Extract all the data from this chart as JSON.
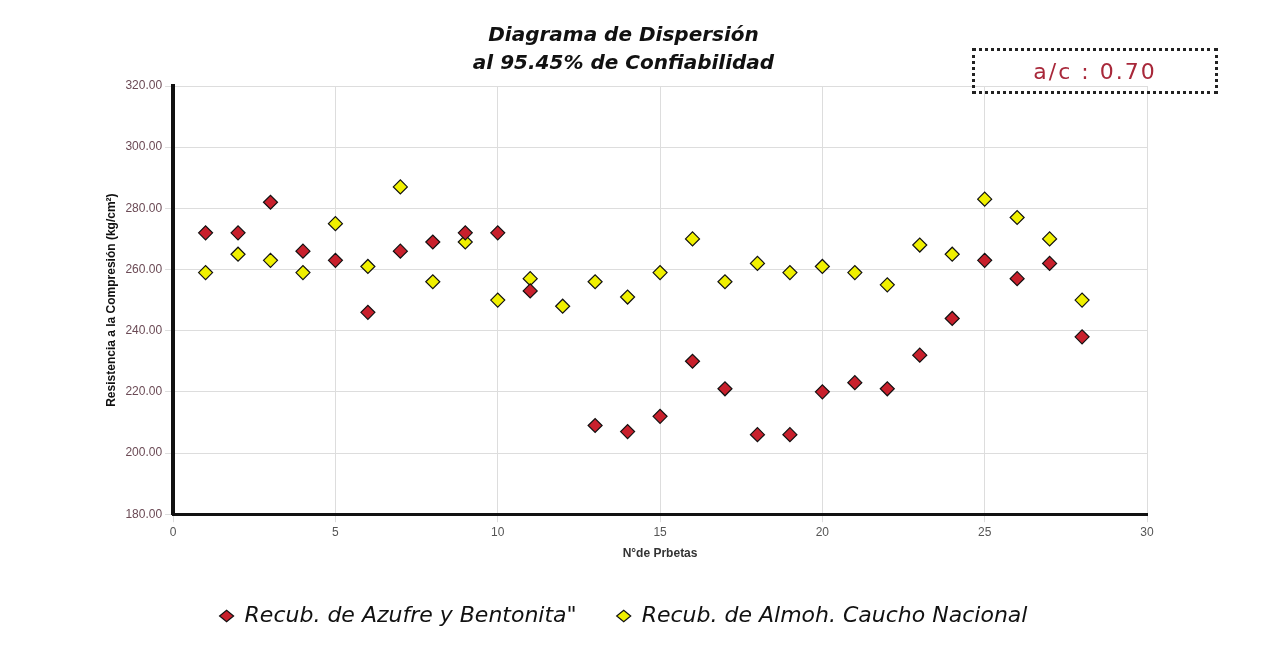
{
  "chart_data": {
    "type": "scatter",
    "title": "Diagrama de Dispersión",
    "subtitle": "al 95.45% de Confiabilidad",
    "xlabel": "N°de Prbetas",
    "ylabel": "Resistencia a la Compresión (kg/cm²)",
    "annotations": [
      "a/c : 0.70"
    ],
    "x": [
      1,
      2,
      3,
      4,
      5,
      6,
      7,
      8,
      9,
      10,
      11,
      12,
      13,
      14,
      15,
      16,
      17,
      18,
      19,
      20,
      21,
      22,
      23,
      24,
      25,
      26,
      27,
      28
    ],
    "series": [
      {
        "name": "Recub. de Azufre y Bentonita\"",
        "color": "#c8202c",
        "values": [
          272,
          272,
          282,
          266,
          263,
          246,
          266,
          269,
          272,
          272,
          253,
          null,
          209,
          207,
          212,
          230,
          221,
          206,
          206,
          220,
          223,
          221,
          232,
          244,
          263,
          257,
          262,
          238
        ]
      },
      {
        "name": "Recub. de Almoh. Caucho Nacional",
        "color": "#f0f000",
        "values": [
          259,
          265,
          263,
          259,
          275,
          261,
          287,
          256,
          269,
          250,
          257,
          248,
          256,
          251,
          259,
          270,
          256,
          262,
          259,
          261,
          259,
          255,
          268,
          265,
          283,
          277,
          270,
          250
        ]
      }
    ],
    "xlim": [
      0,
      30
    ],
    "xticks": [
      0,
      5,
      10,
      15,
      20,
      25,
      30
    ],
    "ylim": [
      180,
      320
    ],
    "yticks": [
      {
        "value": 180,
        "label": "180.00"
      },
      {
        "value": 200,
        "label": "200.00"
      },
      {
        "value": 220,
        "label": "220.00"
      },
      {
        "value": 240,
        "label": "240.00"
      },
      {
        "value": 260,
        "label": "260.00"
      },
      {
        "value": 280,
        "label": "280.00"
      },
      {
        "value": 300,
        "label": "300.00"
      },
      {
        "value": 320,
        "label": "320.00"
      }
    ],
    "grid": true,
    "legend": "bottom",
    "marker": "diamond"
  }
}
